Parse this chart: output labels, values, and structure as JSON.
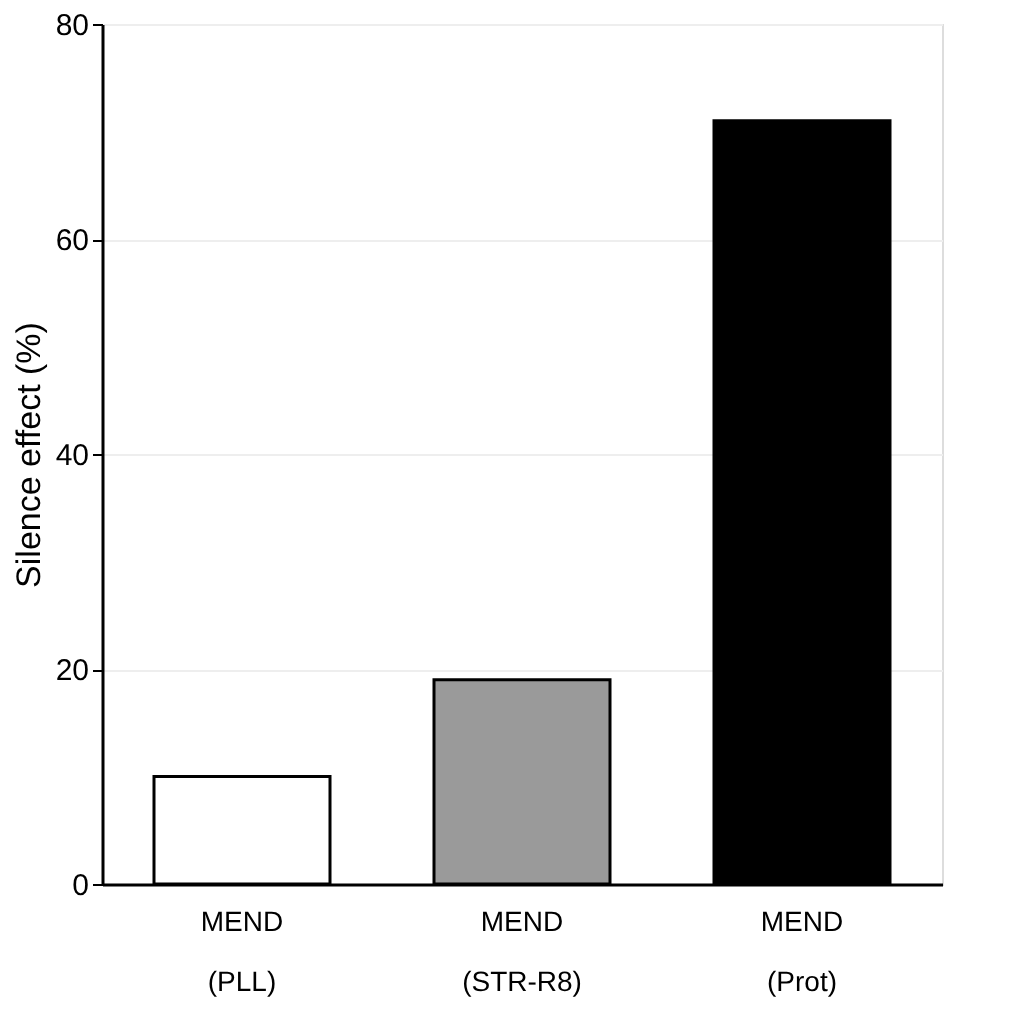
{
  "chart_data": {
    "type": "bar",
    "ylabel": "Silence effect (%)",
    "categories": [
      "MEND\n(PLL)",
      "MEND\n(STR-R8)",
      "MEND\n(Prot)"
    ],
    "values": [
      10,
      19,
      71
    ],
    "colors": [
      "#ffffff",
      "#9a9a9a",
      "#000000"
    ],
    "ylim": [
      0,
      80
    ],
    "yticks": [
      0,
      20,
      40,
      60,
      80
    ],
    "grid": "y"
  }
}
